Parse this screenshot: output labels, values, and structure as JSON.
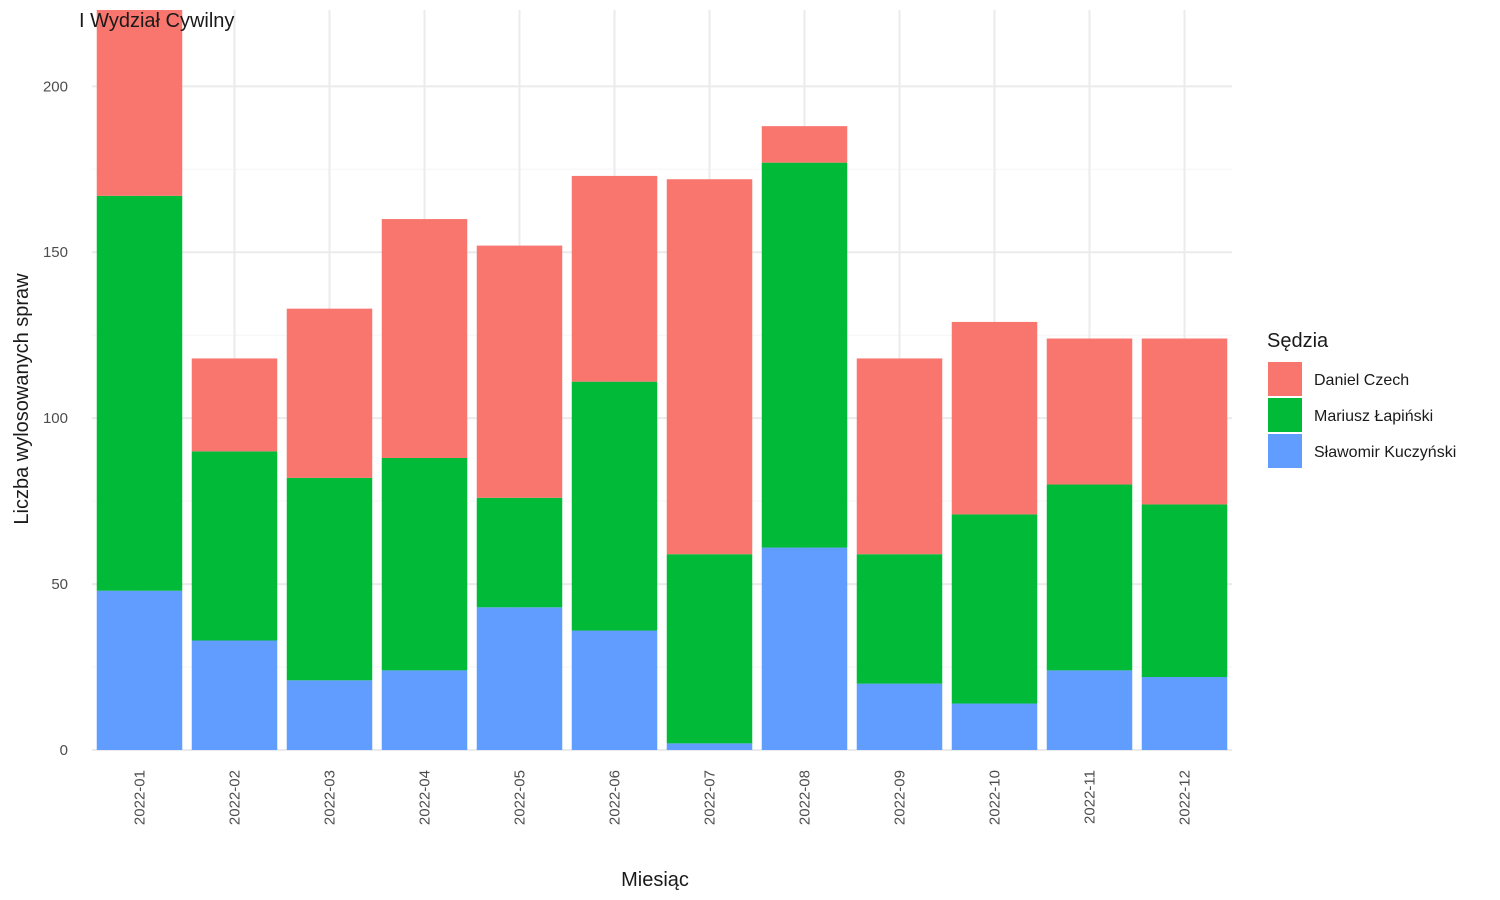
{
  "chart_data": {
    "type": "bar",
    "stacked": true,
    "title": "I Wydział Cywilny",
    "xlabel": "Miesiąc",
    "ylabel": "Liczba wylosowanych spraw",
    "ylim": [
      0,
      223
    ],
    "yticks": [
      0,
      50,
      100,
      150,
      200
    ],
    "grid": true,
    "legend": {
      "title": "Sędzia",
      "placement": "right"
    },
    "categories": [
      "2022-01",
      "2022-02",
      "2022-03",
      "2022-04",
      "2022-05",
      "2022-06",
      "2022-07",
      "2022-08",
      "2022-09",
      "2022-10",
      "2022-11",
      "2022-12"
    ],
    "series": [
      {
        "name": "Sławomir Kuczyński",
        "color": "#619CFF",
        "values": [
          48,
          33,
          21,
          24,
          43,
          36,
          2,
          61,
          20,
          14,
          24,
          22
        ]
      },
      {
        "name": "Mariusz Łapiński",
        "color": "#00BA38",
        "values": [
          119,
          57,
          61,
          64,
          33,
          75,
          57,
          116,
          39,
          57,
          56,
          52
        ]
      },
      {
        "name": "Daniel Czech",
        "color": "#F8766D",
        "values": [
          56,
          28,
          51,
          72,
          76,
          62,
          113,
          11,
          59,
          58,
          44,
          50
        ]
      }
    ],
    "legend_order": [
      "Daniel Czech",
      "Mariusz Łapiński",
      "Sławomir Kuczyński"
    ]
  }
}
